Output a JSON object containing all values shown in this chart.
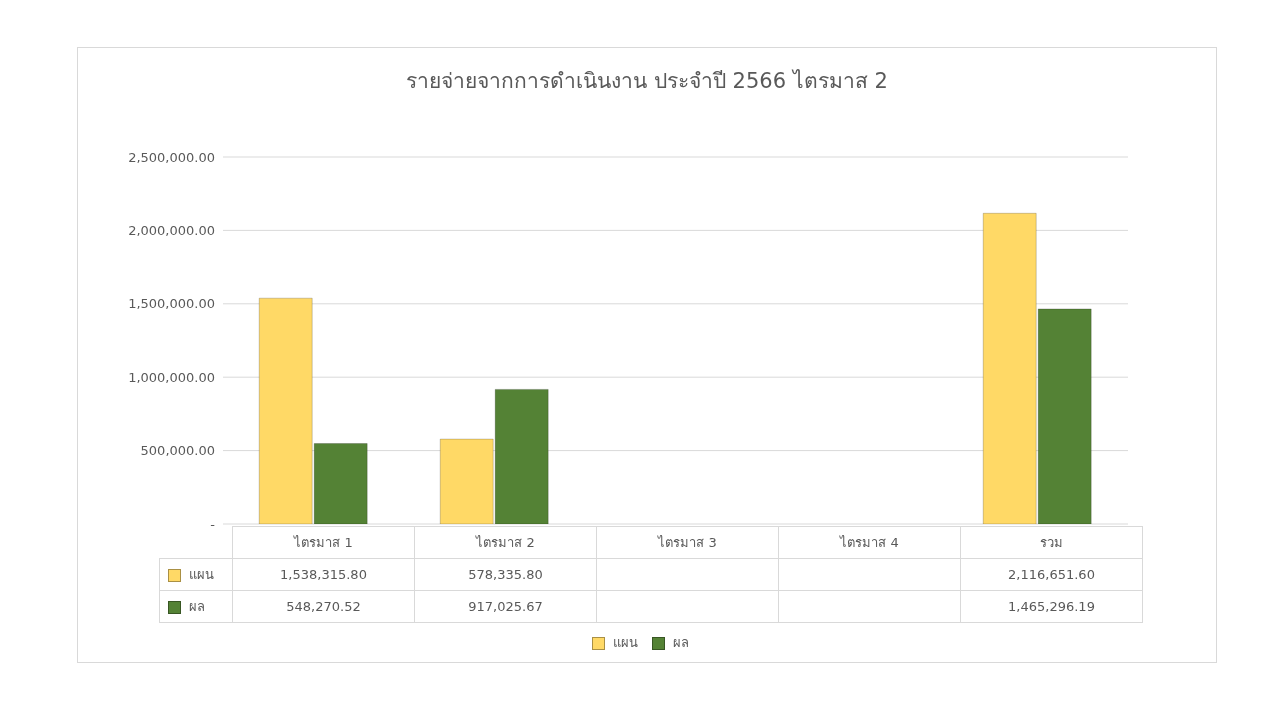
{
  "chart_data": {
    "type": "bar",
    "title": "รายจ่ายจากการดำเนินงาน ประจำปี 2566 ไตรมาส 2",
    "categories": [
      "ไตรมาส 1",
      "ไตรมาส 2",
      "ไตรมาส 3",
      "ไตรมาส 4",
      "รวม"
    ],
    "series": [
      {
        "name": "แผน",
        "color": "#ffd966",
        "values": [
          1538315.8,
          578335.8,
          null,
          null,
          2116651.6
        ],
        "value_labels": [
          "1,538,315.80",
          "578,335.80",
          null,
          null,
          "2,116,651.60"
        ]
      },
      {
        "name": "ผล",
        "color": "#548235",
        "values": [
          548270.52,
          917025.67,
          null,
          null,
          1465296.19
        ],
        "value_labels": [
          "548,270.52",
          "917,025.67",
          null,
          null,
          "1,465,296.19"
        ]
      }
    ],
    "ylim": [
      0,
      2500000
    ],
    "yticks": [
      {
        "value": 0,
        "label": "-"
      },
      {
        "value": 500000,
        "label": "500,000.00"
      },
      {
        "value": 1000000,
        "label": "1,000,000.00"
      },
      {
        "value": 1500000,
        "label": "1,500,000.00"
      },
      {
        "value": 2000000,
        "label": "2,000,000.00"
      },
      {
        "value": 2500000,
        "label": "2,500,000.00"
      }
    ],
    "grid": "y",
    "legend": "bottom"
  }
}
